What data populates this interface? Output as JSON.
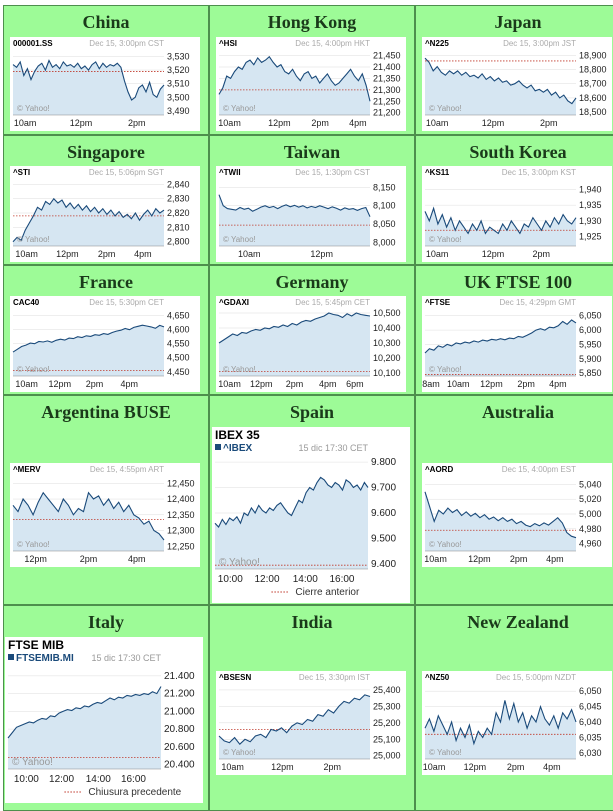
{
  "brand": "© Yahoo!",
  "colors": {
    "cell_bg": "#9dfb97",
    "line": "#1a4a7a",
    "fill": "#d6e6f2",
    "prev": "#c0392b",
    "grid": "#dddddd"
  },
  "charts": [
    {
      "title": "China",
      "symbol": "000001.SS",
      "stamp": "Dec 15, 3:00pm CST",
      "yticks": [
        "3,530",
        "3,520",
        "3,510",
        "3,500",
        "3,490"
      ],
      "yvals": [
        3530,
        3520,
        3510,
        3500,
        3490
      ],
      "ymin": 3487,
      "ymax": 3534,
      "prev": 3519,
      "xticks": [
        "10am",
        "12pm",
        "2pm"
      ],
      "xpos": [
        0.08,
        0.45,
        0.82
      ],
      "series": [
        3524,
        3522,
        3526,
        3516,
        3521,
        3513,
        3519,
        3523,
        3525,
        3520,
        3527,
        3522,
        3524,
        3521,
        3526,
        3523,
        3524,
        3522,
        3525,
        3521,
        3523,
        3520,
        3524,
        3526,
        3521,
        3525,
        3522,
        3524,
        3523,
        3525,
        3522,
        3512,
        3504,
        3498,
        3500,
        3507,
        3509,
        3504,
        3511,
        3502,
        3500,
        3506,
        3509
      ]
    },
    {
      "title": "Hong Kong",
      "symbol": "^HSI",
      "stamp": "Dec 15, 4:00pm HKT",
      "yticks": [
        "21,450",
        "21,400",
        "21,350",
        "21,300",
        "21,250",
        "21,200"
      ],
      "yvals": [
        21450,
        21400,
        21350,
        21300,
        21250,
        21200
      ],
      "ymin": 21190,
      "ymax": 21470,
      "prev": 21300,
      "xticks": [
        "10am",
        "12pm",
        "2pm",
        "4pm"
      ],
      "xpos": [
        0.07,
        0.4,
        0.67,
        0.92
      ],
      "series": [
        21280,
        21310,
        21360,
        21350,
        21380,
        21400,
        21390,
        21420,
        21430,
        21410,
        21440,
        21420,
        21430,
        21445,
        21420,
        21400,
        21410,
        21380,
        21370,
        21390,
        21360,
        21340,
        21370,
        21380,
        21350,
        21360,
        21330,
        21350,
        21370,
        21340,
        21320,
        21330,
        21350,
        21370,
        21390,
        21360,
        21340,
        21370,
        21320,
        21250
      ]
    },
    {
      "title": "Japan",
      "symbol": "^N225",
      "stamp": "Dec 15, 3:00pm JST",
      "yticks": [
        "18,900",
        "18,800",
        "18,700",
        "18,600",
        "18,500"
      ],
      "yvals": [
        18900,
        18800,
        18700,
        18600,
        18500
      ],
      "ymin": 18480,
      "ymax": 18930,
      "prev": 18860,
      "xticks": [
        "10am",
        "12pm",
        "2pm"
      ],
      "xpos": [
        0.08,
        0.45,
        0.82
      ],
      "series": [
        18880,
        18850,
        18790,
        18820,
        18780,
        18760,
        18790,
        18770,
        18790,
        18760,
        18780,
        18750,
        18760,
        18740,
        18770,
        18730,
        18750,
        18720,
        18740,
        18710,
        18720,
        18690,
        18700,
        18720,
        18690,
        18670,
        18690,
        18650,
        18660,
        18640,
        18660,
        18620,
        18640,
        18600,
        18620,
        18580,
        18560,
        18600
      ]
    },
    {
      "title": "Singapore",
      "symbol": "^STI",
      "stamp": "Dec 15, 5:06pm SGT",
      "yticks": [
        "2,840",
        "2,830",
        "2,820",
        "2,810",
        "2,800"
      ],
      "yvals": [
        2840,
        2830,
        2820,
        2810,
        2800
      ],
      "ymin": 2797,
      "ymax": 2843,
      "prev": 2818,
      "xticks": [
        "10am",
        "12pm",
        "2pm",
        "4pm"
      ],
      "xpos": [
        0.09,
        0.36,
        0.62,
        0.86
      ],
      "series": [
        2800,
        2803,
        2801,
        2808,
        2813,
        2818,
        2824,
        2822,
        2828,
        2826,
        2830,
        2827,
        2829,
        2824,
        2827,
        2823,
        2826,
        2822,
        2825,
        2821,
        2824,
        2820,
        2823,
        2819,
        2822,
        2818,
        2821,
        2817,
        2819,
        2816,
        2820,
        2815,
        2819,
        2822,
        2818,
        2823,
        2820,
        2822
      ]
    },
    {
      "title": "Taiwan",
      "symbol": "^TWII",
      "stamp": "Dec 15, 1:30pm CST",
      "yticks": [
        "8,150",
        "8,100",
        "8,050",
        "8,000"
      ],
      "yvals": [
        8150,
        8100,
        8050,
        8000
      ],
      "ymin": 7990,
      "ymax": 8170,
      "prev": 8047,
      "xticks": [
        "10am",
        "12pm"
      ],
      "xpos": [
        0.2,
        0.68
      ],
      "series": [
        8130,
        8100,
        8092,
        8090,
        8088,
        8095,
        8090,
        8093,
        8085,
        8090,
        8096,
        8100,
        8095,
        8098,
        8092,
        8098,
        8102,
        8097,
        8101,
        8096,
        8100,
        8094,
        8098,
        8095,
        8100,
        8096,
        8092,
        8097,
        8093,
        8088,
        8094,
        8090,
        8092,
        8087,
        8092,
        8095,
        8070
      ]
    },
    {
      "title": "South Korea",
      "symbol": "^KS11",
      "stamp": "Dec 15, 3:00pm KST",
      "yticks": [
        "1,940",
        "1,935",
        "1,930",
        "1,925"
      ],
      "yvals": [
        1940,
        1935,
        1930,
        1925
      ],
      "ymin": 1922,
      "ymax": 1943,
      "prev": 1927,
      "xticks": [
        "10am",
        "12pm",
        "2pm"
      ],
      "xpos": [
        0.08,
        0.45,
        0.77
      ],
      "series": [
        1933,
        1930,
        1934,
        1929,
        1932,
        1928,
        1931,
        1927,
        1930,
        1928,
        1926,
        1929,
        1927,
        1930,
        1926,
        1928,
        1927,
        1926,
        1929,
        1927,
        1930,
        1928,
        1926,
        1929,
        1928,
        1931,
        1929,
        1927,
        1930,
        1928,
        1931,
        1929,
        1932,
        1930,
        1929,
        1931
      ]
    },
    {
      "title": "France",
      "symbol": "CAC40",
      "stamp": "Dec 15, 5:30pm CET",
      "yticks": [
        "4,650",
        "4,600",
        "4,550",
        "4,500",
        "4,450"
      ],
      "yvals": [
        4650,
        4600,
        4550,
        4500,
        4450
      ],
      "ymin": 4435,
      "ymax": 4670,
      "prev": 4455,
      "xticks": [
        "10am",
        "12pm",
        "2pm",
        "4pm"
      ],
      "xpos": [
        0.09,
        0.31,
        0.54,
        0.77
      ],
      "series": [
        4520,
        4530,
        4540,
        4545,
        4552,
        4550,
        4558,
        4556,
        4560,
        4555,
        4562,
        4566,
        4563,
        4570,
        4568,
        4575,
        4572,
        4578,
        4576,
        4582,
        4580,
        4586,
        4583,
        4590,
        4595,
        4598,
        4604,
        4600,
        4608,
        4612,
        4616,
        4613,
        4610,
        4605,
        4615,
        4610
      ]
    },
    {
      "title": "Germany",
      "symbol": "^GDAXI",
      "stamp": "Dec 15, 5:45pm CET",
      "yticks": [
        "10,500",
        "10,400",
        "10,300",
        "10,200",
        "10,100"
      ],
      "yvals": [
        10500,
        10400,
        10300,
        10200,
        10100
      ],
      "ymin": 10080,
      "ymax": 10520,
      "prev": 10110,
      "xticks": [
        "10am",
        "12pm",
        "2pm",
        "4pm",
        "6pm"
      ],
      "xpos": [
        0.07,
        0.28,
        0.5,
        0.72,
        0.9
      ],
      "series": [
        10300,
        10320,
        10340,
        10360,
        10350,
        10370,
        10365,
        10380,
        10390,
        10385,
        10400,
        10395,
        10410,
        10405,
        10420,
        10410,
        10430,
        10420,
        10440,
        10450,
        10445,
        10460,
        10470,
        10480,
        10500,
        10490,
        10485,
        10470,
        10495,
        10480,
        10500,
        10490,
        10485,
        10480
      ]
    },
    {
      "title": "UK FTSE 100",
      "symbol": "^FTSE",
      "stamp": "Dec 15, 4:29pm GMT",
      "yticks": [
        "6,050",
        "6,000",
        "5,950",
        "5,900",
        "5,850"
      ],
      "yvals": [
        6050,
        6000,
        5950,
        5900,
        5850
      ],
      "ymin": 5840,
      "ymax": 6070,
      "prev": 5845,
      "xticks": [
        "8am",
        "10am",
        "12pm",
        "2pm",
        "4pm"
      ],
      "xpos": [
        0.04,
        0.22,
        0.44,
        0.67,
        0.88
      ],
      "series": [
        5920,
        5935,
        5930,
        5945,
        5940,
        5950,
        5945,
        5955,
        5952,
        5958,
        5955,
        5962,
        5958,
        5965,
        5962,
        5968,
        5965,
        5970,
        5966,
        5972,
        5970,
        5978,
        5975,
        5982,
        5990,
        6000,
        6005,
        6000,
        6010,
        6008,
        6015,
        6030,
        6020,
        6035,
        6025
      ]
    },
    {
      "title": "Argentina BUSE",
      "symbol": "^MERV",
      "stamp": "Dec 15, 4:55pm ART",
      "yticks": [
        "12,450",
        "12,400",
        "12,350",
        "12,300",
        "12,250"
      ],
      "yvals": [
        12450,
        12400,
        12350,
        12300,
        12250
      ],
      "ymin": 12235,
      "ymax": 12470,
      "prev": 12335,
      "xticks": [
        "12pm",
        "2pm",
        "4pm"
      ],
      "xpos": [
        0.15,
        0.5,
        0.82
      ],
      "series": [
        12380,
        12360,
        12400,
        12380,
        12350,
        12390,
        12420,
        12400,
        12380,
        12360,
        12400,
        12380,
        12350,
        12370,
        12360,
        12420,
        12400,
        12410,
        12380,
        12400,
        12370,
        12390,
        12360,
        12380,
        12350,
        12340,
        12320,
        12330,
        12300,
        12290,
        12270
      ]
    },
    {
      "title": "Spain",
      "head": "IBEX 35",
      "symbol": "^IBEX",
      "stamp": "15 dic 17:30 CET",
      "legend": "Cierre anterior",
      "yticks": [
        "9.800",
        "9.700",
        "9.600",
        "9.500",
        "9.400"
      ],
      "yvals": [
        9800,
        9700,
        9600,
        9500,
        9400
      ],
      "ymin": 9380,
      "ymax": 9820,
      "prev": 9395,
      "xticks": [
        "10:00",
        "12:00",
        "14:00",
        "16:00"
      ],
      "xpos": [
        0.1,
        0.34,
        0.59,
        0.83
      ],
      "series": [
        9560,
        9545,
        9575,
        9555,
        9580,
        9570,
        9585,
        9560,
        9600,
        9590,
        9620,
        9600,
        9630,
        9610,
        9600,
        9620,
        9610,
        9630,
        9640,
        9620,
        9600,
        9590,
        9620,
        9650,
        9640,
        9680,
        9700,
        9690,
        9720,
        9740,
        9730,
        9710,
        9700,
        9720,
        9710,
        9690,
        9730,
        9720,
        9700,
        9710,
        9690,
        9720,
        9700
      ]
    },
    {
      "title": "Australia",
      "symbol": "^AORD",
      "stamp": "Dec 15, 4:00pm EST",
      "yticks": [
        "5,040",
        "5,020",
        "5,000",
        "4,980",
        "4,960"
      ],
      "yvals": [
        5040,
        5020,
        5000,
        4980,
        4960
      ],
      "ymin": 4950,
      "ymax": 5050,
      "prev": 4978,
      "xticks": [
        "10am",
        "12pm",
        "2pm",
        "4pm"
      ],
      "xpos": [
        0.07,
        0.36,
        0.62,
        0.86
      ],
      "series": [
        5030,
        5010,
        4990,
        5005,
        5000,
        5008,
        5002,
        5006,
        4998,
        5003,
        4997,
        5001,
        4995,
        4999,
        4993,
        4996,
        4991,
        4995,
        4990,
        4993,
        4987,
        4990,
        4985,
        4983,
        4987,
        4984,
        4988,
        4985,
        4990,
        4995,
        4988,
        4975,
        4970,
        4968
      ]
    },
    {
      "title": "Italy",
      "head": "FTSE MIB",
      "symbol": "FTSEMIB.MI",
      "stamp": "15 dic 17:30 CET",
      "legend": "Chiusura precedente",
      "yticks": [
        "21.400",
        "21.200",
        "21.000",
        "20.800",
        "20.600",
        "20.400"
      ],
      "yvals": [
        21400,
        21200,
        21000,
        20800,
        20600,
        20400
      ],
      "ymin": 20350,
      "ymax": 21500,
      "prev": 20480,
      "xticks": [
        "10:00",
        "12:00",
        "14:00",
        "16:00"
      ],
      "xpos": [
        0.12,
        0.35,
        0.59,
        0.82
      ],
      "series": [
        20700,
        20760,
        20820,
        20840,
        20860,
        20880,
        20870,
        20900,
        20920,
        20910,
        20950,
        20940,
        20980,
        21000,
        21020,
        21010,
        21040,
        21030,
        21060,
        21050,
        21080,
        21100,
        21090,
        21120,
        21150,
        21130,
        21160,
        21150,
        21180,
        21170,
        21190,
        21180,
        21200,
        21190,
        21220,
        21200,
        21280
      ]
    },
    {
      "title": "India",
      "symbol": "^BSESN",
      "stamp": "Dec 15, 3:30pm IST",
      "yticks": [
        "25,400",
        "25,300",
        "25,200",
        "25,100",
        "25,000"
      ],
      "yvals": [
        25400,
        25300,
        25200,
        25100,
        25000
      ],
      "ymin": 24980,
      "ymax": 25430,
      "prev": 25160,
      "xticks": [
        "10am",
        "12pm",
        "2pm"
      ],
      "xpos": [
        0.09,
        0.42,
        0.75
      ],
      "series": [
        25120,
        25090,
        25080,
        25110,
        25070,
        25100,
        25085,
        25120,
        25130,
        25110,
        25160,
        25150,
        25170,
        25140,
        25180,
        25200,
        25190,
        25220,
        25210,
        25250,
        25240,
        25280,
        25260,
        25300,
        25330,
        25320,
        25350,
        25340,
        25370,
        25360
      ]
    },
    {
      "title": "New Zealand",
      "symbol": "^NZ50",
      "stamp": "Dec 15, 5:00pm NZDT",
      "yticks": [
        "6,050",
        "6,045",
        "6,040",
        "6,035",
        "6,030"
      ],
      "yvals": [
        6050,
        6045,
        6040,
        6035,
        6030
      ],
      "ymin": 6028,
      "ymax": 6052,
      "prev": 6036,
      "xticks": [
        "10am",
        "12pm",
        "2pm",
        "4pm"
      ],
      "xpos": [
        0.06,
        0.33,
        0.6,
        0.84
      ],
      "series": [
        6038,
        6041,
        6037,
        6042,
        6039,
        6036,
        6040,
        6034,
        6038,
        6035,
        6039,
        6033,
        6037,
        6035,
        6038,
        6036,
        6043,
        6040,
        6047,
        6041,
        6046,
        6040,
        6043,
        6038,
        6042,
        6040,
        6045,
        6041,
        6039,
        6042,
        6038,
        6043,
        6041,
        6044,
        6040
      ]
    }
  ]
}
